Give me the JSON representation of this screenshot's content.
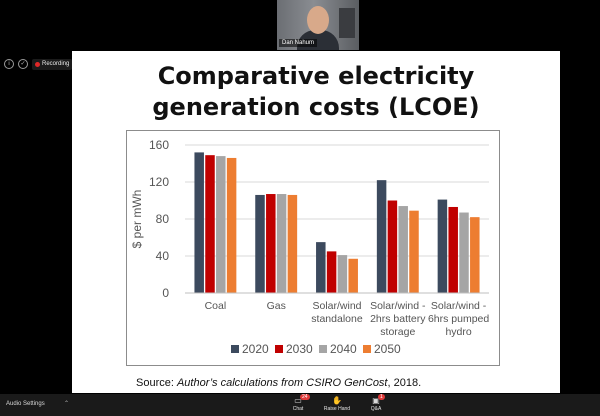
{
  "participant": {
    "name": "Dan Nahum"
  },
  "status": {
    "info_icon": "info-icon",
    "shield_icon": "shield-icon",
    "recording_label": "Recording",
    "recording_color": "#e02828"
  },
  "slide": {
    "title_line1": "Comparative electricity",
    "title_line2": "generation costs (LCOE)",
    "source_prefix": "Source: ",
    "source_author": "Author’s calculations from CSIRO ",
    "source_italic": "GenCost",
    "source_suffix": ", 2018."
  },
  "chart_data": {
    "type": "bar",
    "ylabel": "$ per mWh",
    "ylim": [
      0,
      160
    ],
    "yticks": [
      0,
      40,
      80,
      120,
      160
    ],
    "categories": [
      [
        "Coal"
      ],
      [
        "Gas"
      ],
      [
        "Solar/wind",
        "standalone"
      ],
      [
        "Solar/wind -",
        "2hrs battery",
        "storage"
      ],
      [
        "Solar/wind -",
        "6hrs pumped",
        "hydro"
      ]
    ],
    "series": [
      {
        "name": "2020",
        "color": "#3c4a5e",
        "values": [
          152,
          106,
          55,
          122,
          101
        ]
      },
      {
        "name": "2030",
        "color": "#c00000",
        "values": [
          149,
          107,
          45,
          100,
          93
        ]
      },
      {
        "name": "2040",
        "color": "#a5a5a5",
        "values": [
          148,
          107,
          41,
          94,
          87
        ]
      },
      {
        "name": "2050",
        "color": "#ed7d31",
        "values": [
          146,
          106,
          37,
          89,
          82
        ]
      }
    ],
    "grid": true,
    "legend_position": "bottom"
  },
  "toolbar": {
    "audio_settings": "Audio Settings",
    "chat": {
      "label": "Chat",
      "badge": "24"
    },
    "raise_hand": {
      "label": "Raise Hand"
    },
    "qa": {
      "label": "Q&A",
      "badge": "1"
    }
  }
}
